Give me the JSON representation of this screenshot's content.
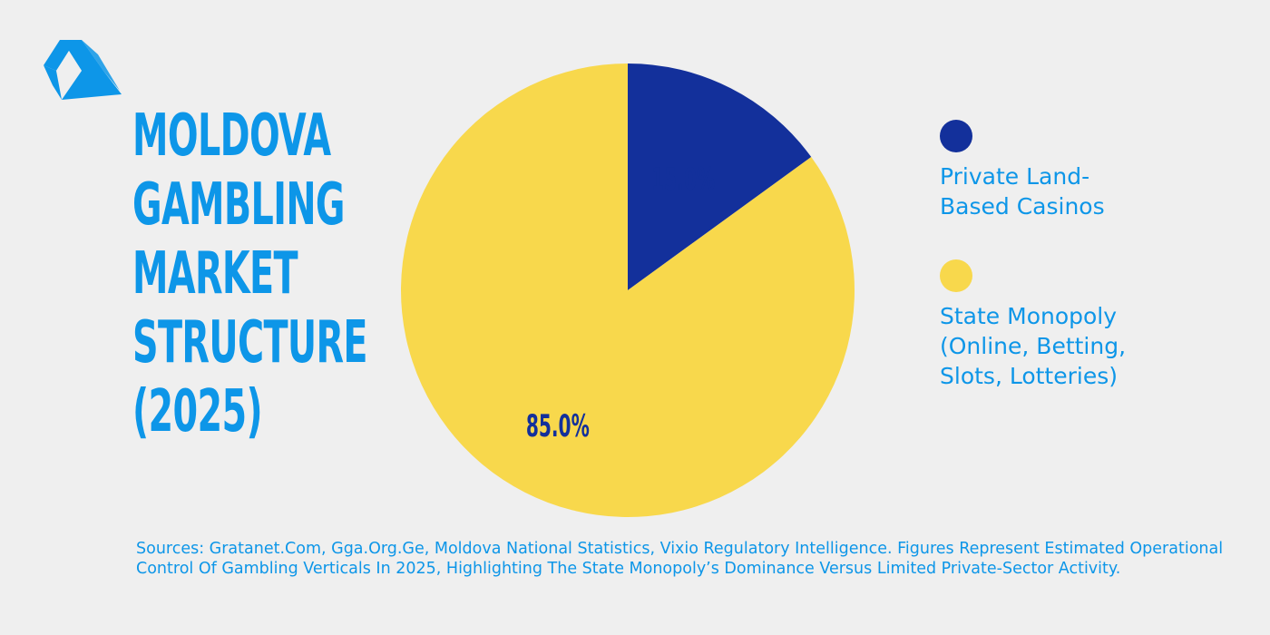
{
  "brand": {
    "logo_icon": "triangle-a-logo-icon",
    "color": "#0d96e8"
  },
  "title": {
    "lines": [
      "MOLDOVA",
      "GAMBLING",
      "MARKET",
      "STRUCTURE",
      "(2025)"
    ]
  },
  "chart_data": {
    "type": "pie",
    "title": "MOLDOVA GAMBLING MARKET STRUCTURE (2025)",
    "slices": [
      {
        "label": "Private Land-Based Casinos",
        "value": 15.0,
        "display": "15.0%",
        "color": "#13309b"
      },
      {
        "label": "State Monopoly (Online, Betting, Slots, Lotteries)",
        "value": 85.0,
        "display": "85.0%",
        "color": "#f8d84c"
      }
    ],
    "start_angle_deg": 0,
    "direction": "clockwise",
    "legend_position": "right"
  },
  "legend": {
    "items": [
      {
        "label": "Private Land-\nBased Casinos",
        "color": "#13309b"
      },
      {
        "label": "State Monopoly\n(Online, Betting,\nSlots, Lotteries)",
        "color": "#f8d84c"
      }
    ]
  },
  "sources": "Sources: Gratanet.Com, Gga.Org.Ge, Moldova National Statistics, Vixio Regulatory Intelligence. Figures Represent Estimated Operational Control Of Gambling Verticals In 2025, Highlighting The State Monopoly’s Dominance Versus Limited Private-Sector Activity."
}
